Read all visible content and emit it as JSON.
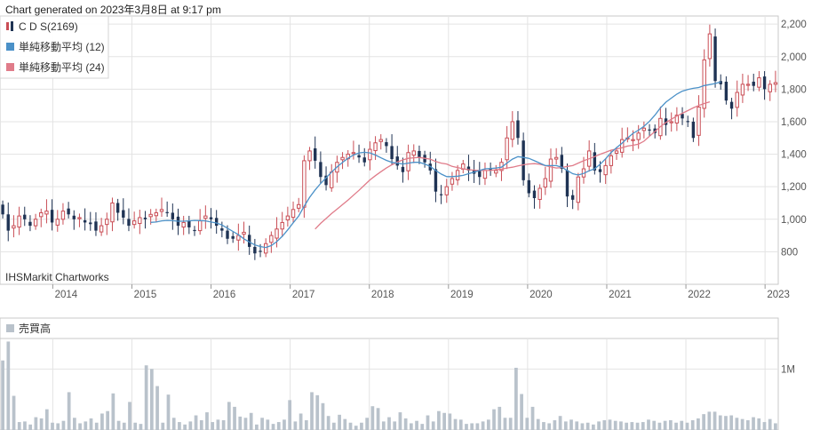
{
  "caption": "Chart generated on 2023年3月8日 at 9:17 pm",
  "credit": "IHSMarkit Chartworks",
  "colors": {
    "up_candle": "#c94d55",
    "down_candle": "#1f3354",
    "sma12": "#4b91c8",
    "sma24": "#e07c8a",
    "volume_bar": "#b9c2cb",
    "grid": "#e3e3e3",
    "frame": "#c9c9c9"
  },
  "chart_data": [
    {
      "type": "candlestick",
      "legend": [
        {
          "label": "C D S(2169)",
          "icon": "candlestick-icon"
        },
        {
          "label": "単純移動平均 (12)",
          "color": "#4b91c8"
        },
        {
          "label": "単純移動平均 (24)",
          "color": "#e07c8a"
        }
      ],
      "legend_position": "top-left",
      "x_tick_labels": [
        "2014",
        "2015",
        "2016",
        "2017",
        "2018",
        "2019",
        "2020",
        "2021",
        "2022",
        "2023"
      ],
      "x_range": [
        "2013-05",
        "2023-03"
      ],
      "y_ticks": [
        800,
        1000,
        1200,
        1400,
        1600,
        1800,
        2000,
        2200
      ],
      "y_tick_labels": [
        "800",
        "1,000",
        "1,200",
        "1,400",
        "1,600",
        "1,800",
        "2,000",
        "2,200"
      ],
      "y_axis_side": "right",
      "ylim": [
        600,
        2250
      ],
      "grid": true,
      "close": [
        1030,
        930,
        960,
        1020,
        1000,
        960,
        1000,
        1040,
        1050,
        980,
        1000,
        1050,
        1030,
        1000,
        1010,
        980,
        970,
        930,
        960,
        1000,
        1100,
        1040,
        1010,
        960,
        990,
        1010,
        1000,
        1030,
        1040,
        1060,
        1040,
        1000,
        960,
        980,
        950,
        930,
        990,
        1020,
        1000,
        960,
        930,
        880,
        880,
        900,
        920,
        830,
        790,
        800,
        850,
        900,
        940,
        980,
        1020,
        1060,
        1090,
        1360,
        1420,
        1360,
        1260,
        1210,
        1290,
        1350,
        1380,
        1400,
        1410,
        1380,
        1350,
        1430,
        1470,
        1490,
        1450,
        1370,
        1330,
        1290,
        1410,
        1420,
        1380,
        1350,
        1300,
        1170,
        1150,
        1200,
        1250,
        1300,
        1340,
        1300,
        1280,
        1260,
        1300,
        1300,
        1300,
        1350,
        1500,
        1600,
        1500,
        1240,
        1160,
        1130,
        1190,
        1250,
        1370,
        1380,
        1310,
        1140,
        1120,
        1260,
        1310,
        1420,
        1300,
        1290,
        1330,
        1390,
        1420,
        1490,
        1500,
        1490,
        1530,
        1560,
        1550,
        1530,
        1620,
        1580,
        1600,
        1640,
        1620,
        1600,
        1500,
        1690,
        1980,
        2140,
        1850,
        1830,
        1730,
        1680,
        1780,
        1830,
        1830,
        1820,
        1870,
        1800,
        1830,
        1840
      ],
      "series": [
        {
          "name": "単純移動平均 (12)",
          "values": [
            null,
            null,
            null,
            null,
            null,
            null,
            null,
            null,
            null,
            null,
            null,
            null,
            null,
            null,
            null,
            null,
            null,
            null,
            null,
            null,
            null,
            null,
            null,
            null,
            null,
            null,
            null,
            981,
            983,
            990,
            993,
            991,
            988,
            988,
            990,
            993,
            992,
            990,
            983,
            977,
            965,
            945,
            925,
            905,
            880,
            860,
            842,
            832,
            826,
            838,
            862,
            895,
            935,
            978,
            1020,
            1080,
            1135,
            1180,
            1220,
            1255,
            1290,
            1322,
            1350,
            1375,
            1395,
            1408,
            1412,
            1408,
            1395,
            1378,
            1362,
            1350,
            1345,
            1340,
            1345,
            1350,
            1350,
            1340,
            1325,
            1300,
            1278,
            1262,
            1262,
            1265,
            1270,
            1280,
            1290,
            1300,
            1310,
            1312,
            1315,
            1320,
            1345,
            1370,
            1385,
            1380,
            1375,
            1360,
            1345,
            1330,
            1330,
            1330,
            1320,
            1300,
            1280,
            1272,
            1282,
            1298,
            1310,
            1338,
            1372,
            1410,
            1440,
            1468,
            1500,
            1528,
            1548,
            1572,
            1602,
            1640,
            1685,
            1720,
            1745,
            1770,
            1788,
            1798,
            1805,
            1810,
            1822,
            1828,
            1835,
            1845
          ]
        },
        {
          "name": "単純移動平均 (24)",
          "values": [
            null,
            null,
            null,
            null,
            null,
            null,
            null,
            null,
            null,
            null,
            null,
            null,
            null,
            null,
            null,
            null,
            null,
            null,
            null,
            null,
            null,
            null,
            null,
            null,
            null,
            null,
            null,
            null,
            null,
            null,
            null,
            null,
            null,
            null,
            null,
            null,
            null,
            null,
            null,
            null,
            null,
            null,
            null,
            null,
            null,
            null,
            null,
            null,
            null,
            null,
            null,
            null,
            null,
            null,
            null,
            null,
            null,
            940,
            975,
            1005,
            1035,
            1062,
            1090,
            1118,
            1148,
            1178,
            1210,
            1242,
            1268,
            1292,
            1315,
            1335,
            1352,
            1365,
            1375,
            1378,
            1380,
            1375,
            1370,
            1355,
            1345,
            1340,
            1325,
            1318,
            1310,
            1305,
            1302,
            1300,
            1300,
            1300,
            1305,
            1308,
            1315,
            1320,
            1328,
            1335,
            1340,
            1342,
            1338,
            1330,
            1322,
            1315,
            1318,
            1325,
            1330,
            1345,
            1360,
            1372,
            1385,
            1400,
            1412,
            1425,
            1432,
            1440,
            1450,
            1455,
            1462,
            1480,
            1510,
            1540,
            1570,
            1595,
            1615,
            1635,
            1652,
            1668,
            1685,
            1700,
            1712,
            1722
          ]
        }
      ]
    },
    {
      "type": "bar",
      "title": "売買高",
      "y_ticks": [
        1000000
      ],
      "y_tick_labels": [
        "1M"
      ],
      "ylim": [
        0,
        1500000
      ],
      "y_axis_side": "right",
      "grid": true,
      "values": [
        1140000,
        1450000,
        560000,
        130000,
        140000,
        90000,
        210000,
        190000,
        340000,
        120000,
        110000,
        150000,
        620000,
        200000,
        110000,
        140000,
        190000,
        120000,
        270000,
        310000,
        600000,
        150000,
        120000,
        460000,
        120000,
        100000,
        1060000,
        1000000,
        720000,
        120000,
        580000,
        200000,
        130000,
        90000,
        140000,
        240000,
        160000,
        290000,
        130000,
        170000,
        160000,
        460000,
        380000,
        220000,
        200000,
        280000,
        90000,
        200000,
        170000,
        100000,
        130000,
        170000,
        490000,
        140000,
        270000,
        160000,
        620000,
        570000,
        440000,
        230000,
        120000,
        250000,
        180000,
        120000,
        70000,
        120000,
        200000,
        390000,
        360000,
        140000,
        210000,
        140000,
        290000,
        190000,
        110000,
        150000,
        100000,
        240000,
        140000,
        310000,
        280000,
        270000,
        180000,
        170000,
        100000,
        110000,
        110000,
        140000,
        170000,
        340000,
        380000,
        200000,
        200000,
        1020000,
        590000,
        200000,
        380000,
        180000,
        130000,
        110000,
        160000,
        230000,
        140000,
        170000,
        140000,
        110000,
        120000,
        90000,
        140000,
        160000,
        170000,
        150000,
        140000,
        120000,
        130000,
        120000,
        130000,
        170000,
        150000,
        120000,
        150000,
        160000,
        120000,
        150000,
        120000,
        160000,
        190000,
        260000,
        300000,
        300000,
        240000,
        230000,
        240000,
        200000,
        180000,
        160000,
        210000,
        190000,
        130000,
        180000,
        110000
      ]
    }
  ]
}
